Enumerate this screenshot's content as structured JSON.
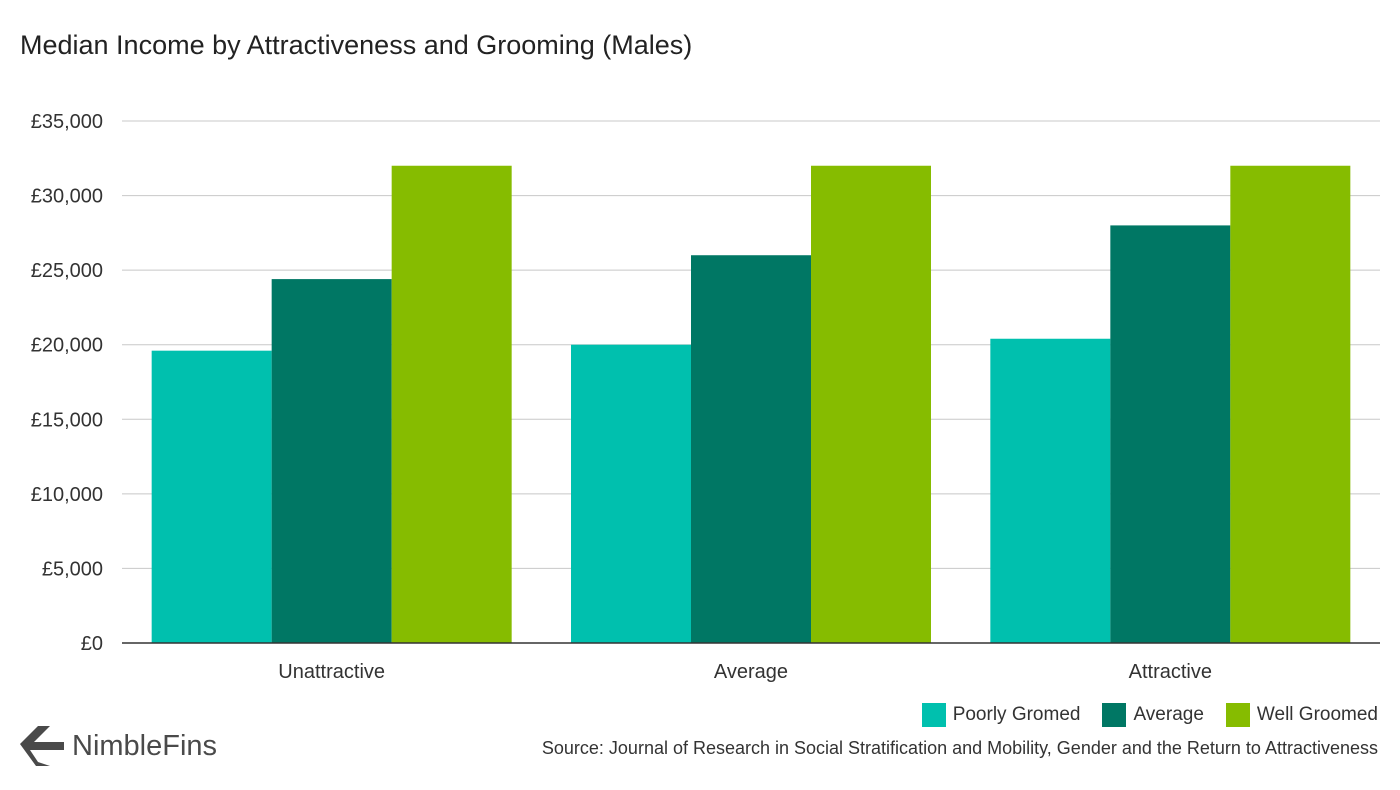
{
  "chart_data": {
    "type": "bar",
    "title": "Median Income by Attractiveness and Grooming (Males)",
    "categories": [
      "Unattractive",
      "Average",
      "Attractive"
    ],
    "series": [
      {
        "name": "Poorly Gromed",
        "color": "#00C0AE",
        "values": [
          19600,
          20000,
          20400
        ]
      },
      {
        "name": "Average",
        "color": "#007764",
        "values": [
          24400,
          26000,
          28000
        ]
      },
      {
        "name": "Well Groomed",
        "color": "#86BC00",
        "values": [
          32000,
          32000,
          32000
        ]
      }
    ],
    "ylim": [
      0,
      35000
    ],
    "yticks": [
      0,
      5000,
      10000,
      15000,
      20000,
      25000,
      30000,
      35000
    ],
    "ytick_labels": [
      "£0",
      "£5,000",
      "£10,000",
      "£15,000",
      "£20,000",
      "£25,000",
      "£30,000",
      "£35,000"
    ],
    "grid": true,
    "legend_position": "bottom-right"
  },
  "source": "Source: Journal of Research in Social Stratification and Mobility, Gender and the Return to Attractiveness",
  "logo": {
    "text": "NimbleFins",
    "icon": "nimblefins-chevron-icon",
    "color": "#4a4a4a"
  }
}
